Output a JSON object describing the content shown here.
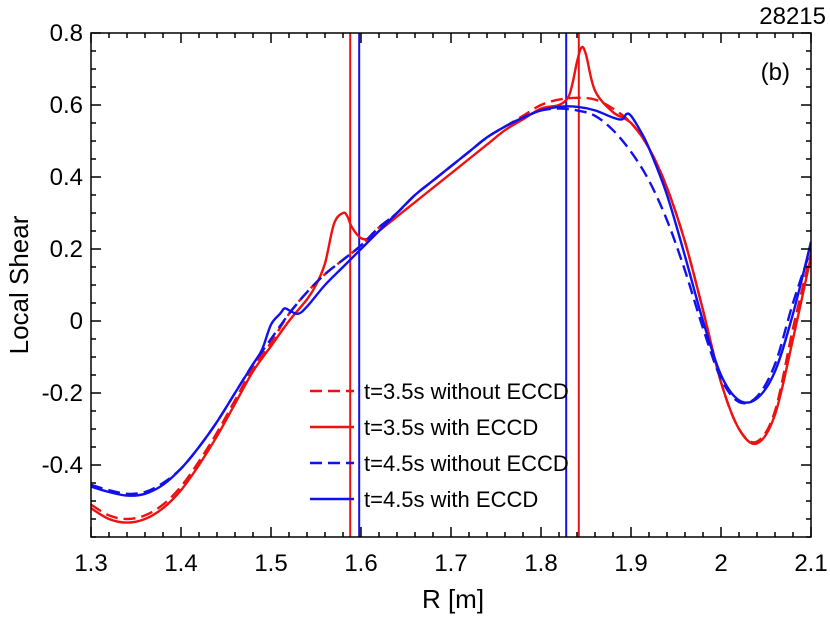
{
  "chart_data": {
    "type": "line",
    "title": "",
    "shot_number": "28215",
    "panel_label": "(b)",
    "xlabel": "R [m]",
    "ylabel": "Local Shear",
    "xlim": [
      1.3,
      2.1
    ],
    "ylim": [
      -0.6,
      0.8
    ],
    "x_ticks": [
      1.3,
      1.4,
      1.5,
      1.6,
      1.7,
      1.8,
      1.9,
      2.0,
      2.1
    ],
    "x_tick_labels": [
      "1.3",
      "1.4",
      "1.5",
      "1.6",
      "1.7",
      "1.8",
      "1.9",
      "2",
      "2.1"
    ],
    "y_ticks": [
      -0.4,
      -0.2,
      0.0,
      0.2,
      0.4,
      0.6,
      0.8
    ],
    "y_tick_labels": [
      "-0.4",
      "-0.2",
      "0",
      "0.2",
      "0.4",
      "0.6",
      "0.8"
    ],
    "legend_position": "bottom-center",
    "series": [
      {
        "name": "t=3.5s without ECCD",
        "color": "#ee1111",
        "dash": "dashed",
        "x": [
          1.3,
          1.32,
          1.34,
          1.36,
          1.38,
          1.4,
          1.42,
          1.44,
          1.46,
          1.48,
          1.5,
          1.52,
          1.54,
          1.56,
          1.58,
          1.6,
          1.62,
          1.64,
          1.66,
          1.68,
          1.7,
          1.72,
          1.74,
          1.76,
          1.78,
          1.8,
          1.82,
          1.84,
          1.86,
          1.88,
          1.9,
          1.92,
          1.94,
          1.96,
          1.98,
          2.0,
          2.02,
          2.04,
          2.06,
          2.08,
          2.1
        ],
        "y": [
          -0.51,
          -0.54,
          -0.55,
          -0.54,
          -0.51,
          -0.46,
          -0.39,
          -0.31,
          -0.22,
          -0.13,
          -0.06,
          0.02,
          0.08,
          0.13,
          0.17,
          0.21,
          0.26,
          0.3,
          0.35,
          0.39,
          0.43,
          0.47,
          0.51,
          0.54,
          0.57,
          0.6,
          0.615,
          0.62,
          0.615,
          0.59,
          0.55,
          0.48,
          0.37,
          0.22,
          0.03,
          -0.17,
          -0.3,
          -0.335,
          -0.25,
          -0.02,
          0.19
        ]
      },
      {
        "name": "t=3.5s with ECCD",
        "color": "#ee1111",
        "dash": "solid",
        "x": [
          1.3,
          1.32,
          1.34,
          1.36,
          1.38,
          1.4,
          1.42,
          1.44,
          1.46,
          1.48,
          1.5,
          1.52,
          1.54,
          1.55,
          1.56,
          1.57,
          1.58,
          1.585,
          1.59,
          1.6,
          1.61,
          1.62,
          1.64,
          1.66,
          1.68,
          1.7,
          1.72,
          1.74,
          1.76,
          1.78,
          1.8,
          1.82,
          1.83,
          1.835,
          1.84,
          1.845,
          1.85,
          1.86,
          1.88,
          1.9,
          1.92,
          1.94,
          1.96,
          1.98,
          2.0,
          2.02,
          2.04,
          2.06,
          2.08,
          2.1
        ],
        "y": [
          -0.52,
          -0.55,
          -0.56,
          -0.55,
          -0.52,
          -0.47,
          -0.4,
          -0.32,
          -0.23,
          -0.14,
          -0.07,
          0.0,
          0.06,
          0.1,
          0.16,
          0.27,
          0.3,
          0.29,
          0.26,
          0.23,
          0.23,
          0.25,
          0.29,
          0.33,
          0.37,
          0.41,
          0.45,
          0.49,
          0.53,
          0.56,
          0.59,
          0.6,
          0.62,
          0.66,
          0.72,
          0.76,
          0.74,
          0.64,
          0.58,
          0.55,
          0.48,
          0.37,
          0.22,
          0.03,
          -0.17,
          -0.3,
          -0.34,
          -0.26,
          -0.05,
          0.18
        ]
      },
      {
        "name": "t=4.5s without ECCD",
        "color": "#1111ee",
        "dash": "dashed",
        "x": [
          1.3,
          1.32,
          1.34,
          1.36,
          1.38,
          1.4,
          1.42,
          1.44,
          1.46,
          1.48,
          1.5,
          1.52,
          1.54,
          1.56,
          1.58,
          1.6,
          1.62,
          1.64,
          1.66,
          1.68,
          1.7,
          1.72,
          1.74,
          1.76,
          1.78,
          1.8,
          1.82,
          1.84,
          1.86,
          1.88,
          1.9,
          1.92,
          1.94,
          1.96,
          1.98,
          2.0,
          2.02,
          2.04,
          2.06,
          2.08,
          2.1
        ],
        "y": [
          -0.455,
          -0.47,
          -0.48,
          -0.475,
          -0.45,
          -0.41,
          -0.35,
          -0.28,
          -0.2,
          -0.12,
          -0.05,
          0.02,
          0.08,
          0.13,
          0.17,
          0.21,
          0.26,
          0.3,
          0.35,
          0.39,
          0.43,
          0.47,
          0.51,
          0.54,
          0.565,
          0.585,
          0.59,
          0.585,
          0.57,
          0.53,
          0.47,
          0.39,
          0.28,
          0.14,
          -0.02,
          -0.16,
          -0.225,
          -0.21,
          -0.12,
          0.05,
          0.2
        ]
      },
      {
        "name": "t=4.5s with ECCD",
        "color": "#1111ee",
        "dash": "solid",
        "x": [
          1.3,
          1.32,
          1.34,
          1.36,
          1.38,
          1.4,
          1.42,
          1.44,
          1.46,
          1.48,
          1.49,
          1.5,
          1.51,
          1.515,
          1.52,
          1.53,
          1.54,
          1.56,
          1.58,
          1.6,
          1.62,
          1.64,
          1.66,
          1.68,
          1.7,
          1.72,
          1.74,
          1.76,
          1.78,
          1.8,
          1.82,
          1.84,
          1.86,
          1.88,
          1.89,
          1.895,
          1.9,
          1.91,
          1.92,
          1.94,
          1.96,
          1.98,
          2.0,
          2.02,
          2.04,
          2.06,
          2.08,
          2.1
        ],
        "y": [
          -0.46,
          -0.475,
          -0.485,
          -0.48,
          -0.455,
          -0.41,
          -0.35,
          -0.28,
          -0.2,
          -0.12,
          -0.08,
          -0.01,
          0.02,
          0.035,
          0.03,
          0.02,
          0.04,
          0.1,
          0.15,
          0.2,
          0.25,
          0.3,
          0.35,
          0.39,
          0.43,
          0.47,
          0.51,
          0.54,
          0.565,
          0.585,
          0.595,
          0.595,
          0.585,
          0.565,
          0.56,
          0.575,
          0.57,
          0.53,
          0.48,
          0.35,
          0.18,
          0.0,
          -0.15,
          -0.22,
          -0.215,
          -0.14,
          0.02,
          0.22
        ]
      }
    ],
    "vertical_markers": [
      {
        "x": 1.588,
        "color": "#ee1111"
      },
      {
        "x": 1.598,
        "color": "#1111ee"
      },
      {
        "x": 1.828,
        "color": "#1111ee"
      },
      {
        "x": 1.842,
        "color": "#ee1111"
      }
    ]
  }
}
